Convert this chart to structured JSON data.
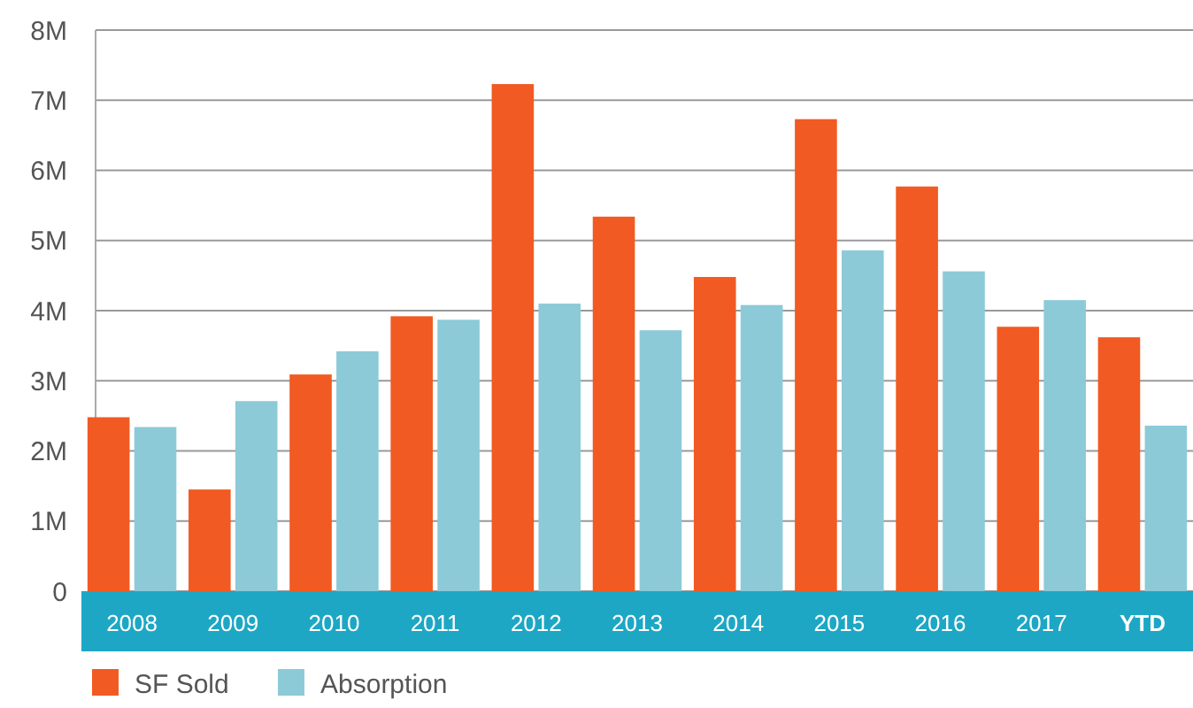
{
  "chart_data": {
    "type": "bar",
    "categories": [
      "2008",
      "2009",
      "2010",
      "2011",
      "2012",
      "2013",
      "2014",
      "2015",
      "2016",
      "2017",
      "YTD"
    ],
    "series": [
      {
        "name": "SF Sold",
        "color": "#f15a22",
        "values": [
          2.48,
          1.45,
          3.09,
          3.92,
          7.23,
          5.34,
          4.48,
          6.73,
          5.77,
          3.77,
          3.62
        ]
      },
      {
        "name": "Absorption",
        "color": "#8ccad8",
        "values": [
          2.34,
          2.71,
          3.42,
          3.87,
          4.1,
          3.72,
          4.08,
          4.86,
          4.56,
          4.15,
          2.36
        ]
      }
    ],
    "ylim": [
      0,
      8
    ],
    "yticks": [
      {
        "value": 0,
        "label": "0"
      },
      {
        "value": 1,
        "label": "1M"
      },
      {
        "value": 2,
        "label": "2M"
      },
      {
        "value": 3,
        "label": "3M"
      },
      {
        "value": 4,
        "label": "4M"
      },
      {
        "value": 5,
        "label": "5M"
      },
      {
        "value": 6,
        "label": "6M"
      },
      {
        "value": 7,
        "label": "7M"
      },
      {
        "value": 8,
        "label": "8M"
      }
    ],
    "grid": "y",
    "legend": "bottom left"
  }
}
